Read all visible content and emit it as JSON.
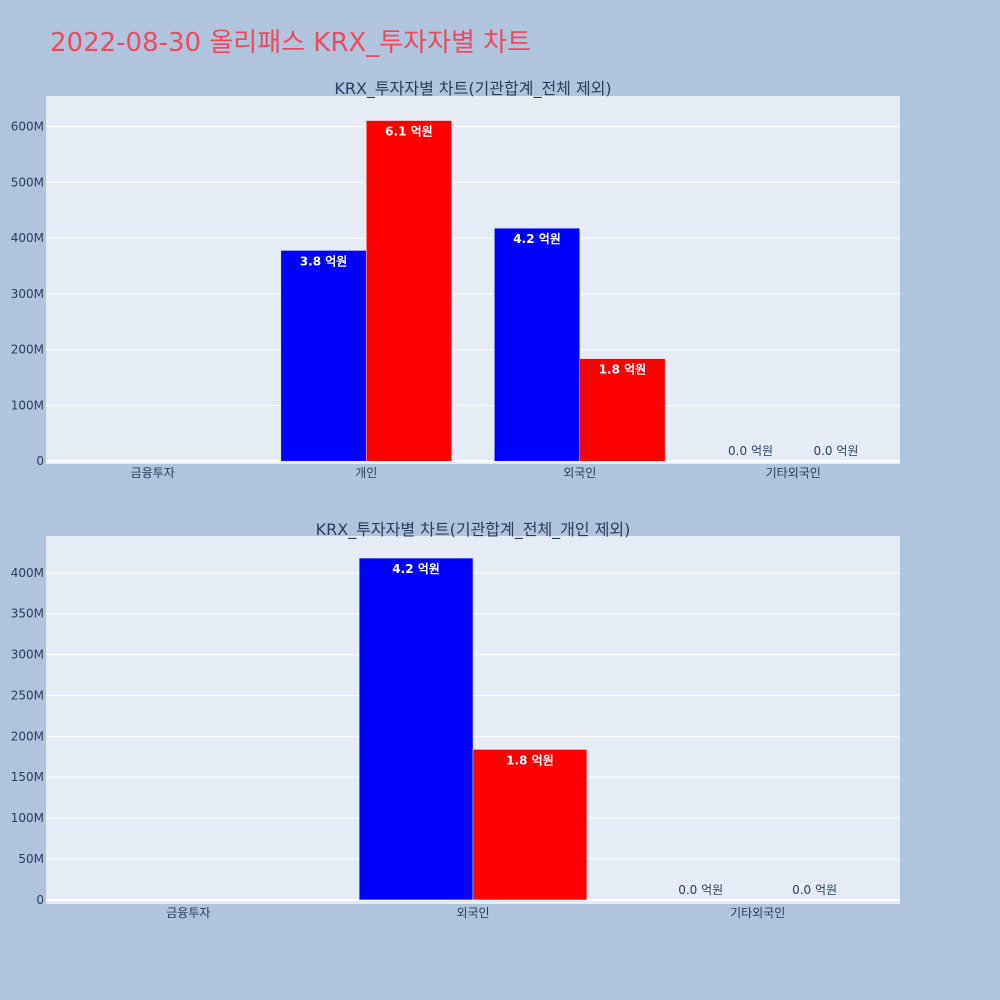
{
  "title": "2022-08-30 올리패스 KRX_투자자별 차트",
  "colors": {
    "buy": "#0000ff",
    "sell": "#ff0000",
    "plot_bg": "#e5ecf6",
    "page_bg": "#b0c4de",
    "title": "#ef4a5f"
  },
  "chart_data": [
    {
      "type": "bar",
      "title": "KRX_투자자별 차트(기관합계_전체 제외)",
      "categories": [
        "금융투자",
        "개인",
        "외국인",
        "기타외국인"
      ],
      "series": [
        {
          "values": [
            0,
            378000000,
            418000000,
            0
          ],
          "labels": [
            "",
            "3.8 억원",
            "4.2 억원",
            "0.0 억원"
          ]
        },
        {
          "values": [
            0,
            611000000,
            184000000,
            0
          ],
          "labels": [
            "",
            "6.1 억원",
            "1.8 억원",
            "0.0 억원"
          ]
        }
      ],
      "ylim": [
        -5000000,
        655000000
      ],
      "yticks": [
        0,
        100000000,
        200000000,
        300000000,
        400000000,
        500000000,
        600000000
      ],
      "ytick_labels": [
        "0",
        "100M",
        "200M",
        "300M",
        "400M",
        "500M",
        "600M"
      ],
      "grid": true
    },
    {
      "type": "bar",
      "title": "KRX_투자자별 차트(기관합계_전체_개인 제외)",
      "categories": [
        "금융투자",
        "외국인",
        "기타외국인"
      ],
      "series": [
        {
          "values": [
            0,
            418000000,
            0
          ],
          "labels": [
            "",
            "4.2 억원",
            "0.0 억원"
          ]
        },
        {
          "values": [
            0,
            184000000,
            0
          ],
          "labels": [
            "",
            "1.8 억원",
            "0.0 억원"
          ]
        }
      ],
      "ylim": [
        -5000000,
        445000000
      ],
      "yticks": [
        0,
        50000000,
        100000000,
        150000000,
        200000000,
        250000000,
        300000000,
        350000000,
        400000000
      ],
      "ytick_labels": [
        "0",
        "50M",
        "100M",
        "150M",
        "200M",
        "250M",
        "300M",
        "350M",
        "400M"
      ],
      "grid": true
    }
  ]
}
